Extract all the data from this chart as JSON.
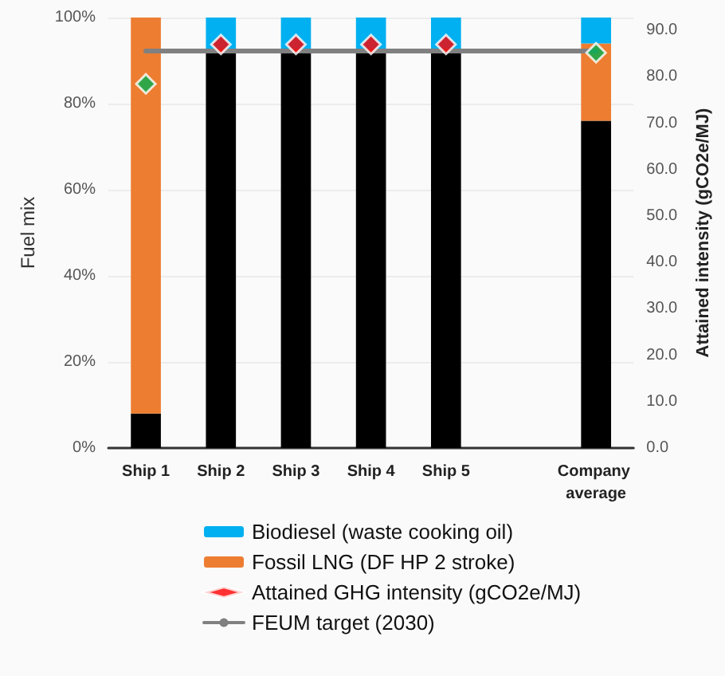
{
  "chart_data": {
    "type": "bar",
    "stacked": true,
    "ylabel": "Fuel mix",
    "y2label": "Attained intensity (gCO2e/MJ)",
    "categories": [
      "Ship 1",
      "Ship 2",
      "Ship 3",
      "Ship 4",
      "Ship 5",
      null,
      "Company average"
    ],
    "series": [
      {
        "color": "#000000",
        "values": [
          8,
          92,
          92,
          92,
          92,
          null,
          76
        ]
      },
      {
        "name": "Fossil LNG (DF HP 2 stroke)",
        "color": "#ed7d31",
        "values": [
          92,
          0,
          0,
          0,
          0,
          null,
          18
        ]
      },
      {
        "name": "Biodiesel (waste cooking oil)",
        "color": "#00b0f0",
        "values": [
          0,
          8,
          8,
          8,
          8,
          null,
          6
        ]
      },
      {
        "name": "Attained GHG intensity (gCO2e/MJ)",
        "type": "scatter",
        "axis": "y2",
        "marker": "diamond",
        "color": "#ff0000",
        "colors": [
          "#00b050",
          "#ff0000",
          "#ff0000",
          "#ff0000",
          "#ff0000",
          null,
          "#00b050"
        ],
        "values": [
          78.5,
          87,
          87,
          87,
          87,
          null,
          85.2
        ]
      },
      {
        "name": "FEUM target (2030)",
        "type": "line",
        "axis": "y2",
        "marker": "none",
        "line_style": "solid",
        "color": "#808080",
        "values": [
          85.6,
          85.6,
          85.6,
          85.6,
          85.6,
          85.6,
          85.6
        ]
      }
    ],
    "ylim": [
      0,
      100
    ],
    "yticks": [
      {
        "value": 0,
        "label": "0%"
      },
      {
        "value": 20,
        "label": "20%"
      },
      {
        "value": 40,
        "label": "40%"
      },
      {
        "value": 60,
        "label": "60%"
      },
      {
        "value": 80,
        "label": "80%"
      },
      {
        "value": 100,
        "label": "100%"
      }
    ],
    "y2lim": [
      0,
      92.8
    ],
    "y2ticks": [
      {
        "value": 0,
        "label": "0.0"
      },
      {
        "value": 10,
        "label": "10.0"
      },
      {
        "value": 20,
        "label": "20.0"
      },
      {
        "value": 30,
        "label": "30.0"
      },
      {
        "value": 40,
        "label": "40.0"
      },
      {
        "value": 50,
        "label": "50.0"
      },
      {
        "value": 60,
        "label": "60.0"
      },
      {
        "value": 70,
        "label": "70.0"
      },
      {
        "value": 80,
        "label": "80.0"
      },
      {
        "value": 90,
        "label": "90.0"
      }
    ],
    "grid": "y",
    "legend": "bottom"
  }
}
